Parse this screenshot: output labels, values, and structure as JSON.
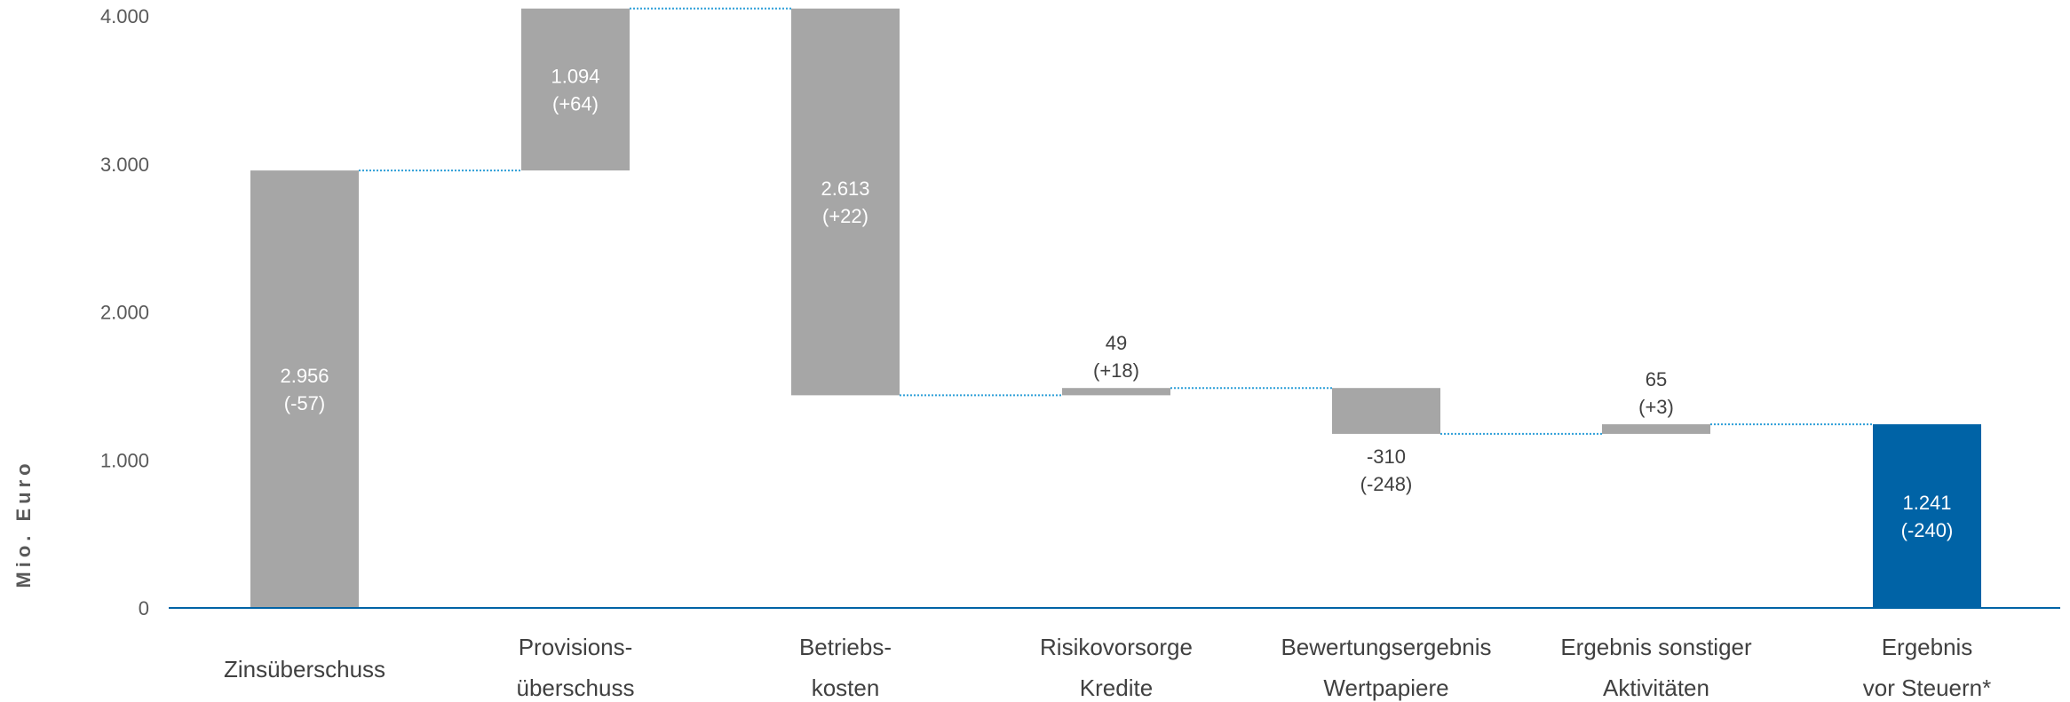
{
  "chart_data": {
    "type": "bar",
    "subtype": "waterfall",
    "ylabel": "Mio. Euro",
    "ylim": [
      0,
      4000
    ],
    "yticks": [
      0,
      1000,
      2000,
      3000,
      4000
    ],
    "ytick_labels": [
      "0",
      "1.000",
      "2.000",
      "3.000",
      "4.000"
    ],
    "grid": false,
    "legend": "none",
    "connectors": "dotted",
    "colors": {
      "bar": "#a6a6a6",
      "total": "#0063a6",
      "connector": "#2e9fd8",
      "axis": "#0063a6"
    },
    "categories": [
      [
        "Zinsüberschuss"
      ],
      [
        "Provisions-",
        "überschuss"
      ],
      [
        "Betriebs-",
        "kosten"
      ],
      [
        "Risikovorsorge",
        "Kredite"
      ],
      [
        "Bewertungsergebnis",
        "Wertpapiere"
      ],
      [
        "Ergebnis sonstiger",
        "Aktivitäten"
      ],
      [
        "Ergebnis",
        "vor Steuern*"
      ]
    ],
    "steps": [
      {
        "kind": "add",
        "value": 2956,
        "label": [
          "2.956",
          "(-57)"
        ],
        "label_pos": "inside"
      },
      {
        "kind": "add",
        "value": 1094,
        "label": [
          "1.094",
          "(+64)"
        ],
        "label_pos": "inside"
      },
      {
        "kind": "sub",
        "value": 2613,
        "label": [
          "2.613",
          "(+22)"
        ],
        "label_pos": "inside"
      },
      {
        "kind": "add",
        "value": 49,
        "label": [
          "49",
          "(+18)"
        ],
        "label_pos": "above"
      },
      {
        "kind": "sub",
        "value": 310,
        "label": [
          "-310",
          "(-248)"
        ],
        "label_pos": "below"
      },
      {
        "kind": "add",
        "value": 65,
        "label": [
          "65",
          "(+3)"
        ],
        "label_pos": "above"
      },
      {
        "kind": "total",
        "value": 1241,
        "label": [
          "1.241",
          "(-240)"
        ],
        "label_pos": "inside"
      }
    ]
  }
}
